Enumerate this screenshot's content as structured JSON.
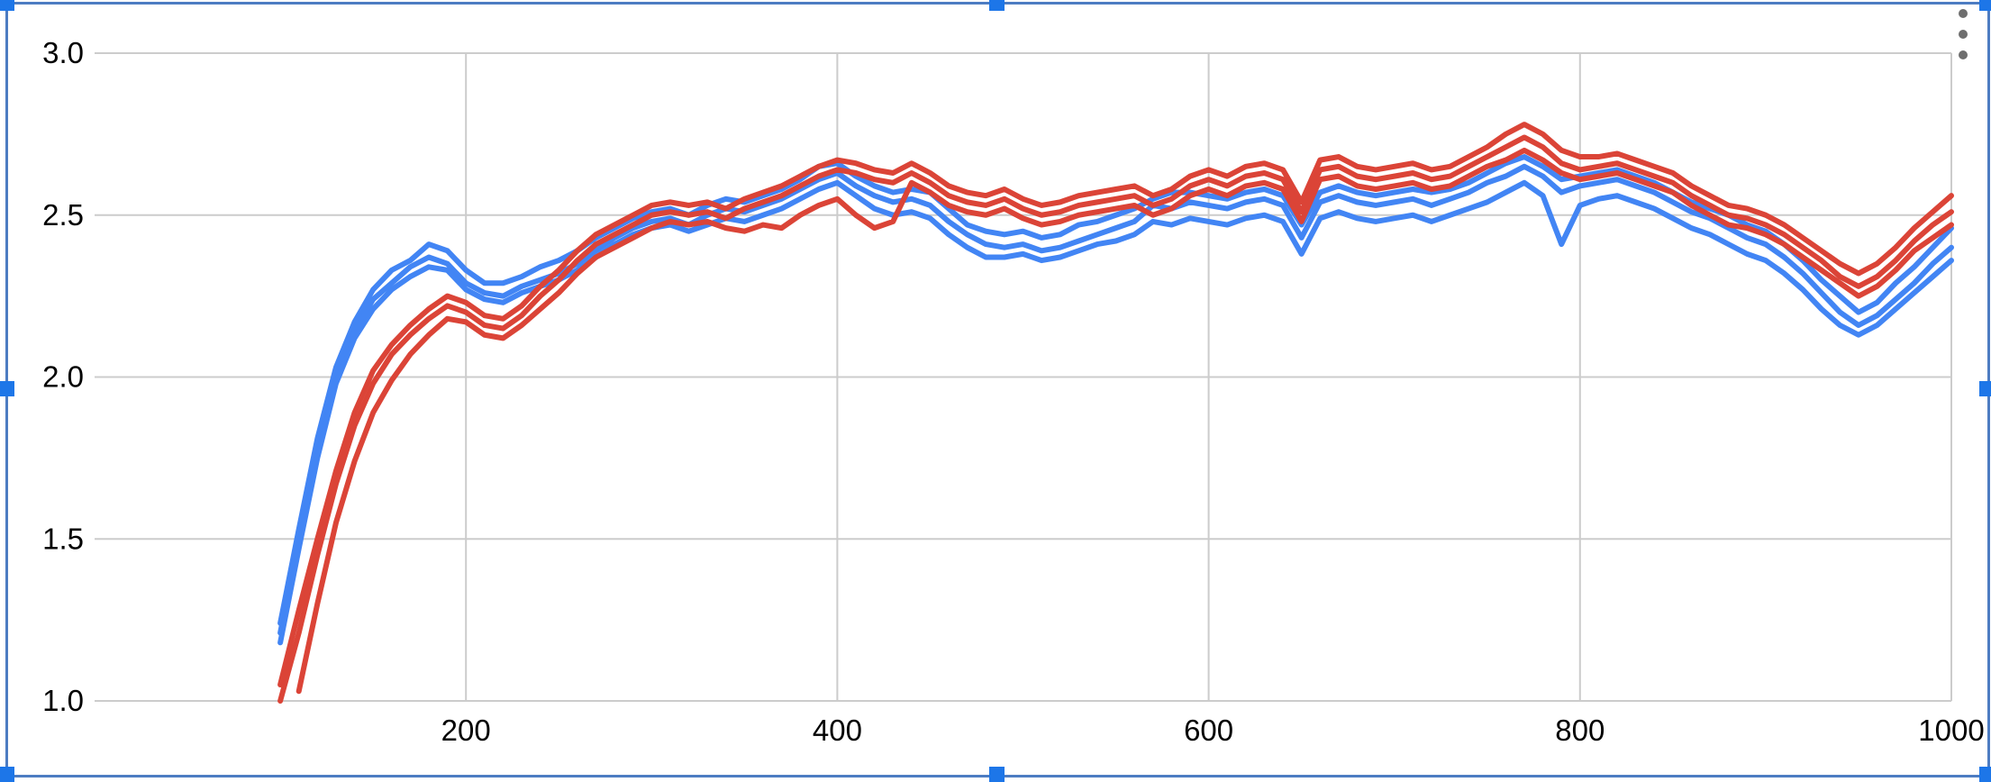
{
  "chart_data": {
    "type": "line",
    "title": "",
    "xlabel": "",
    "ylabel": "",
    "grid": true,
    "legend": "none",
    "xlim": [
      0,
      1000
    ],
    "ylim": [
      1.0,
      3.0
    ],
    "x_ticks": [
      {
        "v": 200,
        "label": "200"
      },
      {
        "v": 400,
        "label": "400"
      },
      {
        "v": 600,
        "label": "600"
      },
      {
        "v": 800,
        "label": "800"
      },
      {
        "v": 1000,
        "label": "1000"
      }
    ],
    "y_ticks": [
      {
        "v": 1.0,
        "label": "1.0"
      },
      {
        "v": 1.5,
        "label": "1.5"
      },
      {
        "v": 2.0,
        "label": "2.0"
      },
      {
        "v": 2.5,
        "label": "2.5"
      },
      {
        "v": 3.0,
        "label": "3.0"
      }
    ],
    "x": [
      100,
      110,
      120,
      130,
      140,
      150,
      160,
      170,
      180,
      190,
      200,
      210,
      220,
      230,
      240,
      250,
      260,
      270,
      280,
      290,
      300,
      310,
      320,
      330,
      340,
      350,
      360,
      370,
      380,
      390,
      400,
      410,
      420,
      430,
      440,
      450,
      460,
      470,
      480,
      490,
      500,
      510,
      520,
      530,
      540,
      550,
      560,
      570,
      580,
      590,
      600,
      610,
      620,
      630,
      640,
      650,
      660,
      670,
      680,
      690,
      700,
      710,
      720,
      730,
      740,
      750,
      760,
      770,
      780,
      790,
      800,
      810,
      820,
      830,
      840,
      850,
      860,
      870,
      880,
      890,
      900,
      910,
      920,
      930,
      940,
      950,
      960,
      970,
      980,
      990,
      1000
    ],
    "series": [
      {
        "id": "blue-1",
        "color": "#4285f4",
        "values": [
          1.24,
          1.53,
          1.81,
          2.03,
          2.17,
          2.27,
          2.33,
          2.36,
          2.41,
          2.39,
          2.33,
          2.29,
          2.29,
          2.31,
          2.34,
          2.36,
          2.39,
          2.43,
          2.46,
          2.49,
          2.51,
          2.52,
          2.5,
          2.53,
          2.55,
          2.54,
          2.56,
          2.58,
          2.61,
          2.65,
          2.66,
          2.62,
          2.59,
          2.57,
          2.58,
          2.57,
          2.52,
          2.47,
          2.45,
          2.44,
          2.45,
          2.43,
          2.44,
          2.47,
          2.48,
          2.5,
          2.52,
          2.55,
          2.57,
          2.57,
          2.56,
          2.55,
          2.57,
          2.58,
          2.56,
          2.47,
          2.57,
          2.59,
          2.57,
          2.56,
          2.57,
          2.58,
          2.57,
          2.58,
          2.6,
          2.63,
          2.66,
          2.68,
          2.65,
          2.61,
          2.62,
          2.63,
          2.64,
          2.62,
          2.6,
          2.57,
          2.54,
          2.52,
          2.5,
          2.47,
          2.45,
          2.41,
          2.36,
          2.3,
          2.25,
          2.2,
          2.23,
          2.29,
          2.34,
          2.4,
          2.46
        ]
      },
      {
        "id": "blue-2",
        "color": "#4285f4",
        "values": [
          1.21,
          1.5,
          1.78,
          2.0,
          2.14,
          2.24,
          2.29,
          2.34,
          2.37,
          2.35,
          2.29,
          2.26,
          2.25,
          2.28,
          2.3,
          2.32,
          2.35,
          2.39,
          2.43,
          2.46,
          2.48,
          2.49,
          2.47,
          2.5,
          2.52,
          2.51,
          2.53,
          2.55,
          2.58,
          2.61,
          2.63,
          2.59,
          2.56,
          2.54,
          2.55,
          2.53,
          2.48,
          2.44,
          2.41,
          2.4,
          2.41,
          2.39,
          2.4,
          2.42,
          2.44,
          2.46,
          2.48,
          2.53,
          2.52,
          2.54,
          2.53,
          2.52,
          2.54,
          2.55,
          2.53,
          2.43,
          2.54,
          2.56,
          2.54,
          2.53,
          2.54,
          2.55,
          2.53,
          2.55,
          2.57,
          2.6,
          2.62,
          2.65,
          2.62,
          2.57,
          2.59,
          2.6,
          2.61,
          2.59,
          2.57,
          2.54,
          2.51,
          2.49,
          2.46,
          2.43,
          2.41,
          2.37,
          2.32,
          2.26,
          2.2,
          2.16,
          2.19,
          2.24,
          2.29,
          2.35,
          2.4
        ]
      },
      {
        "id": "blue-3",
        "color": "#4285f4",
        "values": [
          1.18,
          1.47,
          1.75,
          1.98,
          2.12,
          2.21,
          2.27,
          2.31,
          2.34,
          2.33,
          2.27,
          2.24,
          2.23,
          2.26,
          2.28,
          2.3,
          2.33,
          2.37,
          2.41,
          2.44,
          2.46,
          2.47,
          2.45,
          2.47,
          2.49,
          2.48,
          2.5,
          2.52,
          2.55,
          2.58,
          2.6,
          2.56,
          2.52,
          2.5,
          2.51,
          2.49,
          2.44,
          2.4,
          2.37,
          2.37,
          2.38,
          2.36,
          2.37,
          2.39,
          2.41,
          2.42,
          2.44,
          2.48,
          2.47,
          2.49,
          2.48,
          2.47,
          2.49,
          2.5,
          2.48,
          2.38,
          2.49,
          2.51,
          2.49,
          2.48,
          2.49,
          2.5,
          2.48,
          2.5,
          2.52,
          2.54,
          2.57,
          2.6,
          2.56,
          2.41,
          2.53,
          2.55,
          2.56,
          2.54,
          2.52,
          2.49,
          2.46,
          2.44,
          2.41,
          2.38,
          2.36,
          2.32,
          2.27,
          2.21,
          2.16,
          2.13,
          2.16,
          2.21,
          2.26,
          2.31,
          2.36
        ]
      },
      {
        "id": "red-1",
        "color": "#db4437",
        "values": [
          1.05,
          1.28,
          1.5,
          1.71,
          1.89,
          2.02,
          2.1,
          2.16,
          2.21,
          2.25,
          2.23,
          2.19,
          2.18,
          2.22,
          2.28,
          2.33,
          2.39,
          2.44,
          2.47,
          2.5,
          2.53,
          2.54,
          2.53,
          2.54,
          2.52,
          2.55,
          2.57,
          2.59,
          2.62,
          2.65,
          2.67,
          2.66,
          2.64,
          2.63,
          2.66,
          2.63,
          2.59,
          2.57,
          2.56,
          2.58,
          2.55,
          2.53,
          2.54,
          2.56,
          2.57,
          2.58,
          2.59,
          2.56,
          2.58,
          2.62,
          2.64,
          2.62,
          2.65,
          2.66,
          2.64,
          2.54,
          2.67,
          2.68,
          2.65,
          2.64,
          2.65,
          2.66,
          2.64,
          2.65,
          2.68,
          2.71,
          2.75,
          2.78,
          2.75,
          2.7,
          2.68,
          2.68,
          2.69,
          2.67,
          2.65,
          2.63,
          2.59,
          2.56,
          2.53,
          2.52,
          2.5,
          2.47,
          2.43,
          2.39,
          2.35,
          2.32,
          2.35,
          2.4,
          2.46,
          2.51,
          2.56
        ]
      },
      {
        "id": "red-2",
        "color": "#db4437",
        "values": [
          1.0,
          1.21,
          1.45,
          1.67,
          1.85,
          1.98,
          2.07,
          2.13,
          2.18,
          2.22,
          2.2,
          2.16,
          2.15,
          2.19,
          2.25,
          2.3,
          2.36,
          2.41,
          2.44,
          2.47,
          2.5,
          2.51,
          2.5,
          2.51,
          2.49,
          2.52,
          2.54,
          2.56,
          2.59,
          2.62,
          2.64,
          2.63,
          2.61,
          2.6,
          2.63,
          2.6,
          2.56,
          2.54,
          2.53,
          2.55,
          2.52,
          2.5,
          2.51,
          2.53,
          2.54,
          2.55,
          2.56,
          2.53,
          2.55,
          2.59,
          2.61,
          2.59,
          2.62,
          2.63,
          2.61,
          2.51,
          2.64,
          2.65,
          2.62,
          2.61,
          2.62,
          2.63,
          2.61,
          2.62,
          2.65,
          2.68,
          2.71,
          2.74,
          2.71,
          2.66,
          2.64,
          2.65,
          2.66,
          2.64,
          2.62,
          2.6,
          2.56,
          2.53,
          2.5,
          2.49,
          2.47,
          2.44,
          2.4,
          2.36,
          2.31,
          2.28,
          2.31,
          2.36,
          2.42,
          2.47,
          2.51
        ]
      },
      {
        "id": "red-3",
        "color": "#db4437",
        "values": [
          null,
          1.03,
          1.3,
          1.55,
          1.74,
          1.89,
          1.99,
          2.07,
          2.13,
          2.18,
          2.17,
          2.13,
          2.12,
          2.16,
          2.21,
          2.26,
          2.32,
          2.37,
          2.4,
          2.43,
          2.46,
          2.48,
          2.47,
          2.48,
          2.46,
          2.45,
          2.47,
          2.46,
          2.5,
          2.53,
          2.55,
          2.5,
          2.46,
          2.48,
          2.6,
          2.57,
          2.53,
          2.51,
          2.5,
          2.52,
          2.49,
          2.47,
          2.48,
          2.5,
          2.51,
          2.52,
          2.53,
          2.5,
          2.52,
          2.56,
          2.58,
          2.56,
          2.59,
          2.6,
          2.58,
          2.48,
          2.61,
          2.62,
          2.59,
          2.58,
          2.59,
          2.6,
          2.58,
          2.59,
          2.62,
          2.65,
          2.67,
          2.7,
          2.67,
          2.63,
          2.61,
          2.62,
          2.63,
          2.61,
          2.59,
          2.57,
          2.53,
          2.5,
          2.47,
          2.46,
          2.44,
          2.41,
          2.37,
          2.33,
          2.29,
          2.25,
          2.28,
          2.33,
          2.39,
          2.43,
          2.47
        ]
      }
    ]
  },
  "colors": {
    "series_blue": "#4285f4",
    "series_red": "#db4437",
    "gridline": "#cccccc",
    "axis_text": "#000000",
    "selection_border": "#4d7cc2",
    "selection_handle": "#1d76e8",
    "menu_dots": "#6e6e6e",
    "background": "#ffffff"
  },
  "icons": {
    "more_options": "⋮"
  }
}
